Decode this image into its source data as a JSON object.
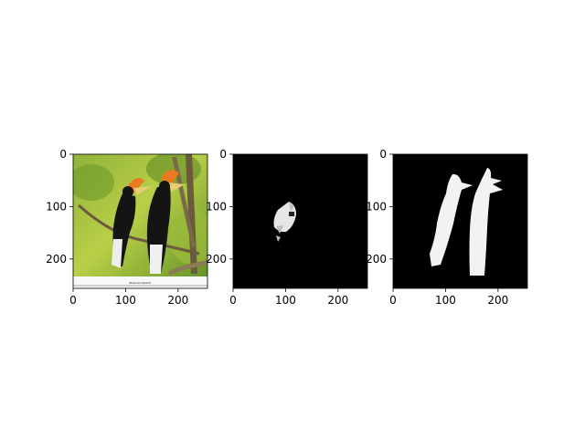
{
  "chart_data": [
    {
      "type": "image",
      "image_extent": [
        0,
        256
      ],
      "xticks": [
        0,
        100,
        200
      ],
      "yticks": [
        0,
        100,
        200
      ],
      "tick_labels_x": [
        "0",
        "100",
        "200"
      ],
      "tick_labels_y": [
        "0",
        "100",
        "200"
      ],
      "content": "photo",
      "photo_caption": "Shannon Sinhill"
    },
    {
      "type": "image",
      "image_extent": [
        0,
        256
      ],
      "xticks": [
        0,
        100,
        200
      ],
      "yticks": [
        0,
        100,
        200
      ],
      "tick_labels_x": [
        "0",
        "100",
        "200"
      ],
      "tick_labels_y": [
        "0",
        "100",
        "200"
      ],
      "content": "mask"
    },
    {
      "type": "image",
      "image_extent": [
        0,
        256
      ],
      "xticks": [
        0,
        100,
        200
      ],
      "yticks": [
        0,
        100,
        200
      ],
      "tick_labels_x": [
        "0",
        "100",
        "200"
      ],
      "tick_labels_y": [
        "0",
        "100",
        "200"
      ],
      "content": "mask"
    }
  ],
  "colors": {
    "background": "#ffffff",
    "mask_background": "#000000",
    "mask_foreground": "#f2f2f2",
    "mask_partial": "#bfbfbf",
    "photo_green_light": "#b5c83d",
    "photo_green_dark": "#4f7d1f",
    "bird_black": "#141414",
    "casque_orange": "#e87a1f",
    "beak_yellow": "#e6cf73"
  }
}
